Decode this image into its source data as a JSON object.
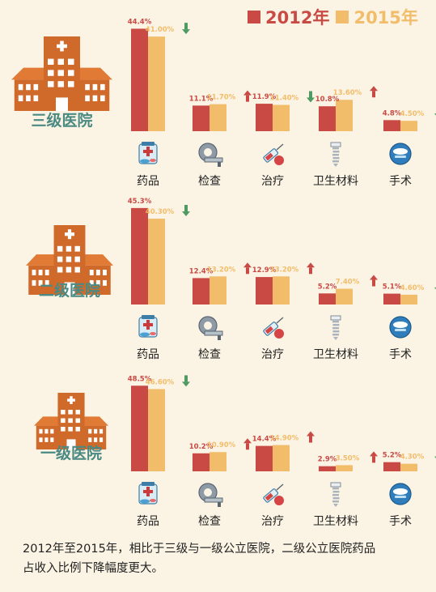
{
  "legend": {
    "label_2012": "2012年",
    "label_2015": "2015年"
  },
  "colors": {
    "y2012": "#c94a45",
    "y2015": "#f2bd6a",
    "up": "#c94a45",
    "down": "#4e9a62",
    "building_dark": "#cf6a2a",
    "building_mid": "#e07a34",
    "hospital_label": "#4a8a83",
    "category_label": "#222222"
  },
  "caption": {
    "part1": "2012年至2015年，相比于三级与一级公立医院，二级公立医院药品",
    "part2": "占收入比例下降幅度更大。"
  },
  "chart_data": [
    {
      "type": "bar",
      "panel": "三级医院",
      "categories": [
        "药品",
        "检查",
        "治疗",
        "卫生材料",
        "手术"
      ],
      "icons": [
        "medicine-icon",
        "ct-scanner-icon",
        "syringe-icon",
        "dental-implant-icon",
        "surgery-icon"
      ],
      "series": [
        {
          "name": "2012年",
          "values": [
            44.4,
            11.1,
            11.9,
            10.8,
            4.8
          ],
          "labels": [
            "44.4%",
            "11.1%",
            "11.9%",
            "10.8%",
            "4.8%"
          ]
        },
        {
          "name": "2015年",
          "values": [
            41.0,
            11.7,
            11.4,
            13.6,
            4.5
          ],
          "labels": [
            "41.00%",
            "11.70%",
            "11.40%",
            "13.60%",
            "4.50%"
          ]
        }
      ],
      "trend": [
        "down",
        "up",
        "down",
        "up",
        "down"
      ]
    },
    {
      "type": "bar",
      "panel": "二级医院",
      "categories": [
        "药品",
        "检查",
        "治疗",
        "卫生材料",
        "手术"
      ],
      "icons": [
        "medicine-icon",
        "ct-scanner-icon",
        "syringe-icon",
        "dental-implant-icon",
        "surgery-icon"
      ],
      "series": [
        {
          "name": "2012年",
          "values": [
            45.3,
            12.4,
            12.9,
            5.2,
            5.1
          ],
          "labels": [
            "45.3%",
            "12.4%",
            "12.9%",
            "5.2%",
            "5.1%"
          ]
        },
        {
          "name": "2015年",
          "values": [
            40.3,
            13.2,
            13.2,
            7.4,
            4.6
          ],
          "labels": [
            "40.30%",
            "13.20%",
            "13.20%",
            "7.40%",
            "4.60%"
          ]
        }
      ],
      "trend": [
        "down",
        "up",
        "up",
        "up",
        "down"
      ]
    },
    {
      "type": "bar",
      "panel": "一级医院",
      "categories": [
        "药品",
        "检查",
        "治疗",
        "卫生材料",
        "手术"
      ],
      "icons": [
        "medicine-icon",
        "ct-scanner-icon",
        "syringe-icon",
        "dental-implant-icon",
        "surgery-icon"
      ],
      "series": [
        {
          "name": "2012年",
          "values": [
            48.5,
            10.2,
            14.4,
            2.9,
            5.2
          ],
          "labels": [
            "48.5%",
            "10.2%",
            "14.4%",
            "2.9%",
            "5.2%"
          ]
        },
        {
          "name": "2015年",
          "values": [
            46.6,
            10.9,
            14.9,
            3.5,
            4.3
          ],
          "labels": [
            "46.60%",
            "10.90%",
            "14.90%",
            "3.50%",
            "4.30%"
          ]
        }
      ],
      "trend": [
        "down",
        "up",
        "up",
        "up",
        "down"
      ]
    }
  ]
}
